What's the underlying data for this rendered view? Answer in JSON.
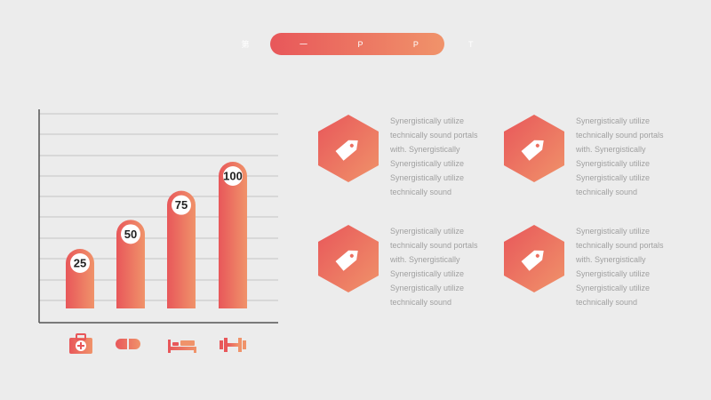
{
  "header": {
    "title": "第 一 P P T"
  },
  "colors": {
    "gradient_start": "#e8575a",
    "gradient_end": "#f0936a",
    "axis": "#555555",
    "grid": "#c4c4c4"
  },
  "chart_data": {
    "type": "bar",
    "categories": [
      "medical-kit",
      "pills",
      "bed",
      "dumbbell"
    ],
    "values": [
      25,
      50,
      75,
      100
    ],
    "labels": [
      "25",
      "50",
      "75",
      "100"
    ],
    "ylim": [
      0,
      100
    ],
    "grid": true
  },
  "category_icons": [
    "medical-kit-icon",
    "pill-icon",
    "bed-icon",
    "dumbbell-icon"
  ],
  "cards": [
    {
      "icon": "tag-icon",
      "lines": [
        "Synergistically utilize",
        "technically sound portals",
        "with. Synergistically",
        "Synergistically utilize",
        "Synergistically utilize",
        "technically sound"
      ]
    },
    {
      "icon": "tag-icon",
      "lines": [
        "Synergistically utilize",
        "technically sound portals",
        "with. Synergistically",
        "Synergistically utilize",
        "Synergistically utilize",
        "technically sound"
      ]
    },
    {
      "icon": "tag-icon",
      "lines": [
        "Synergistically utilize",
        "technically sound portals",
        "with. Synergistically",
        "Synergistically utilize",
        "Synergistically utilize",
        "technically sound"
      ]
    },
    {
      "icon": "tag-icon",
      "lines": [
        "Synergistically utilize",
        "technically sound portals",
        "with. Synergistically",
        "Synergistically utilize",
        "Synergistically utilize",
        "technically sound"
      ]
    }
  ]
}
